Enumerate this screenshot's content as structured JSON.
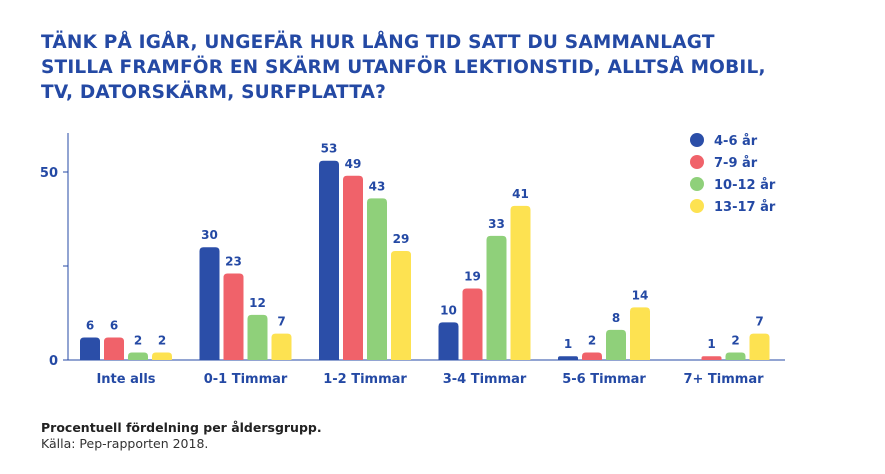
{
  "title_lines": [
    "TÄNK PÅ IGÅR, UNGEFÄR HUR LÅNG TID SATT DU SAMMANLAGT",
    "STILLA FRAMFÖR EN SKÄRM UTANFÖR LEKTIONSTID, ALLTSÅ MOBIL,",
    "TV, DATORSKÄRM, SURFPLATTA?"
  ],
  "footnote": {
    "caption": "Procentuell fördelning per åldersgrupp.",
    "source": "Källa: Pep-rapporten 2018."
  },
  "chart_data": {
    "type": "bar",
    "categories": [
      "Inte alls",
      "0-1 Timmar",
      "1-2 Timmar",
      "3-4 Timmar",
      "5-6 Timmar",
      "7+ Timmar"
    ],
    "series": [
      {
        "name": "4-6 år",
        "color": "#2b4ea8",
        "values": [
          6,
          30,
          53,
          10,
          1,
          null
        ]
      },
      {
        "name": "7-9 år",
        "color": "#f0626a",
        "values": [
          6,
          23,
          49,
          19,
          2,
          1
        ]
      },
      {
        "name": "10-12 år",
        "color": "#8fd07a",
        "values": [
          2,
          12,
          43,
          33,
          8,
          2
        ]
      },
      {
        "name": "13-17 år",
        "color": "#fde251",
        "values": [
          2,
          7,
          29,
          41,
          14,
          7
        ]
      }
    ],
    "y_ticks": [
      0,
      50
    ],
    "ylim": [
      0,
      60
    ],
    "legend_position": "top-right",
    "grid": false,
    "axis_color": "#2449a4",
    "label_color": "#2449a4"
  }
}
